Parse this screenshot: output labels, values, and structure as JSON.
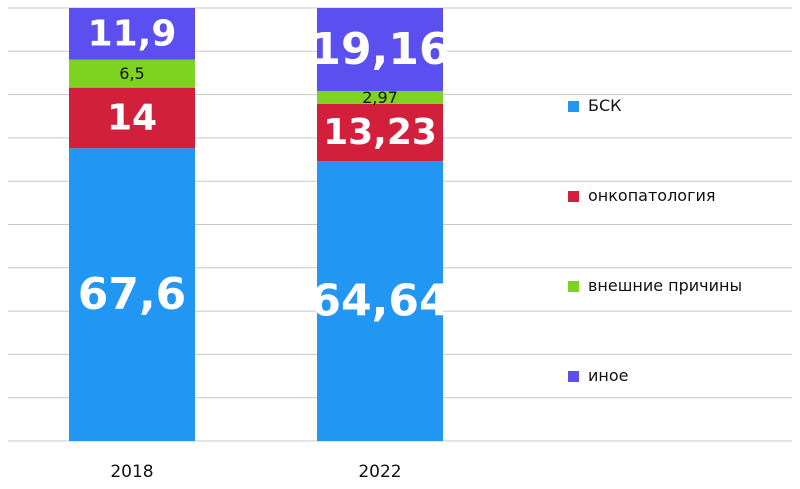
{
  "chart_data": {
    "type": "bar",
    "stacked": true,
    "categories": [
      "2018",
      "2022"
    ],
    "series": [
      {
        "name": "БСК",
        "color": "#2196f3",
        "values": [
          67.6,
          64.64
        ],
        "labels": [
          "67,6",
          "64,64"
        ]
      },
      {
        "name": "онкопатология",
        "color": "#d21f3c",
        "values": [
          14,
          13.23
        ],
        "labels": [
          "14",
          "13,23"
        ]
      },
      {
        "name": "внешние причины",
        "color": "#7ed321",
        "values": [
          6.5,
          2.97
        ],
        "labels": [
          "6,5",
          "2,97"
        ]
      },
      {
        "name": "иное",
        "color": "#5b4ff0",
        "values": [
          11.9,
          19.16
        ],
        "labels": [
          "11,9",
          "19,16"
        ]
      }
    ],
    "ylim": [
      0,
      100
    ],
    "grid": true,
    "legend_position": "right"
  }
}
